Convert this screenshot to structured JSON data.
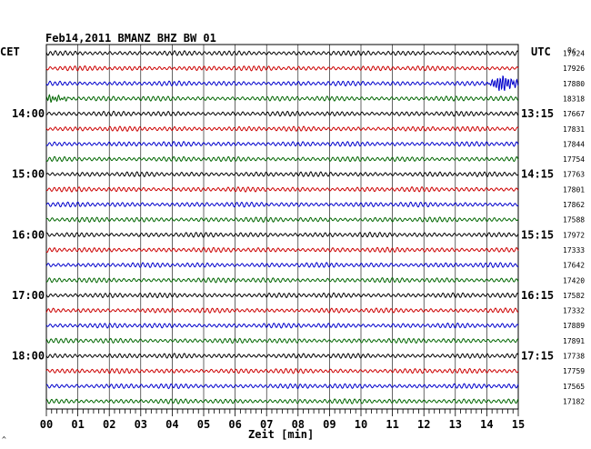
{
  "chart_data": {
    "type": "line",
    "title": "Feb14,2011   BMANZ BHZ BW 01",
    "xlabel": "Zeit [min]",
    "left_unit": "CET",
    "right_unit": "UTC",
    "right_header": "0c",
    "corner_mark": "^",
    "x_ticks": [
      "00",
      "01",
      "02",
      "03",
      "04",
      "05",
      "06",
      "07",
      "08",
      "09",
      "10",
      "11",
      "12",
      "13",
      "14",
      "15"
    ],
    "xlim": [
      0,
      15
    ],
    "left_hour_labels": [
      {
        "row": 4,
        "text": "14:00"
      },
      {
        "row": 8,
        "text": "15:00"
      },
      {
        "row": 12,
        "text": "16:00"
      },
      {
        "row": 16,
        "text": "17:00"
      },
      {
        "row": 20,
        "text": "18:00"
      }
    ],
    "right_hour_labels": [
      {
        "row": 4,
        "text": "13:15"
      },
      {
        "row": 8,
        "text": "14:15"
      },
      {
        "row": 12,
        "text": "15:15"
      },
      {
        "row": 16,
        "text": "16:15"
      },
      {
        "row": 20,
        "text": "17:15"
      }
    ],
    "trace_colors": [
      "#000000",
      "#cc0000",
      "#0000cc",
      "#006600"
    ],
    "traces": [
      {
        "offset": "17924",
        "event": false
      },
      {
        "offset": "17926",
        "event": false
      },
      {
        "offset": "17880",
        "event": true,
        "event_start_min": 14.0
      },
      {
        "offset": "18318",
        "event": false,
        "onset_burst": true
      },
      {
        "offset": "17667",
        "event": false
      },
      {
        "offset": "17831",
        "event": false
      },
      {
        "offset": "17844",
        "event": false
      },
      {
        "offset": "17754",
        "event": false
      },
      {
        "offset": "17763",
        "event": false
      },
      {
        "offset": "17801",
        "event": false
      },
      {
        "offset": "17862",
        "event": false
      },
      {
        "offset": "17588",
        "event": false
      },
      {
        "offset": "17972",
        "event": false
      },
      {
        "offset": "17333",
        "event": false
      },
      {
        "offset": "17642",
        "event": false
      },
      {
        "offset": "17420",
        "event": false
      },
      {
        "offset": "17582",
        "event": false
      },
      {
        "offset": "17332",
        "event": false
      },
      {
        "offset": "17889",
        "event": false
      },
      {
        "offset": "17891",
        "event": false
      },
      {
        "offset": "17738",
        "event": false
      },
      {
        "offset": "17759",
        "event": false
      },
      {
        "offset": "17565",
        "event": false
      },
      {
        "offset": "17182",
        "event": false
      }
    ]
  }
}
